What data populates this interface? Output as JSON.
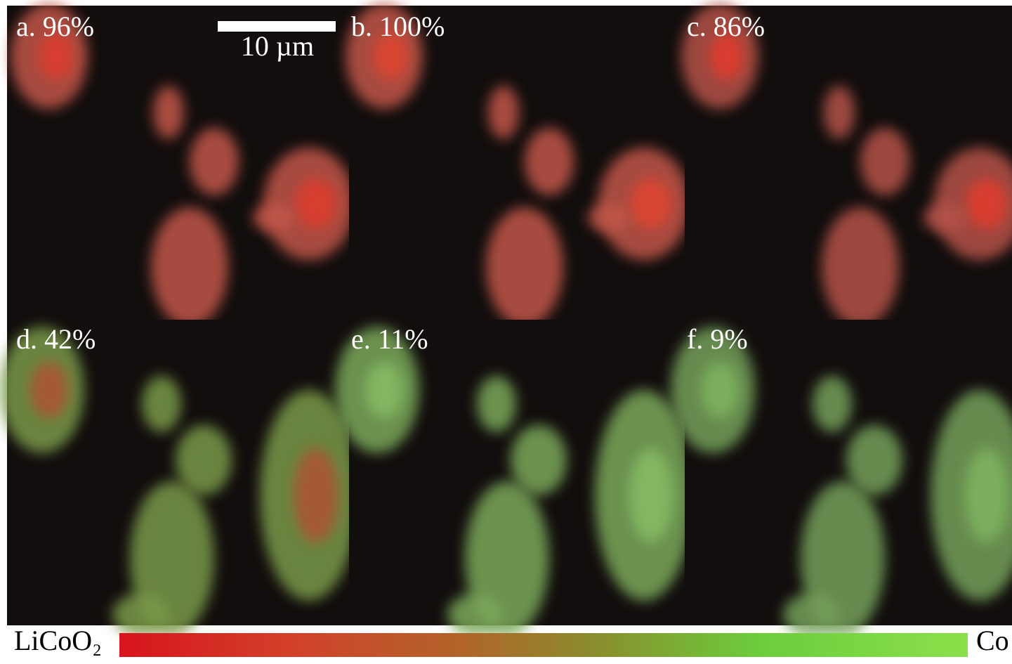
{
  "panels": [
    {
      "label": "a. 96%"
    },
    {
      "label": "b. 100%"
    },
    {
      "label": "c. 86%"
    },
    {
      "label": "d. 42%"
    },
    {
      "label": "e. 11%"
    },
    {
      "label": "f. 9%"
    }
  ],
  "scale_bar": {
    "label": "10 µm"
  },
  "colorbar": {
    "left_label": "LiCoO₂",
    "right_label": "Co"
  }
}
